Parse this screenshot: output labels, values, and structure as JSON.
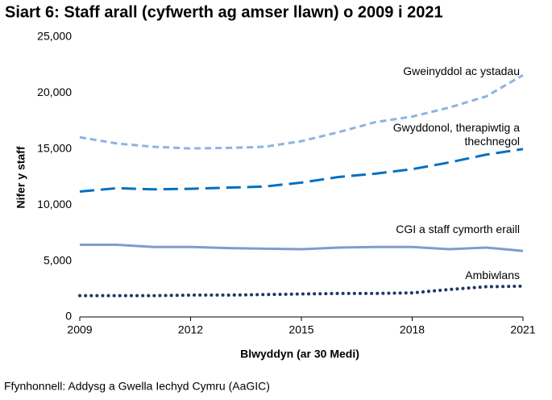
{
  "chart_data": {
    "type": "line",
    "title": "Siart 6: Staff arall (cyfwerth ag amser llawn) o 2009 i 2021",
    "x_label": "Blwyddyn (ar 30 Medi)",
    "y_label": "Nifer y staff",
    "source": "Ffynhonnell: Addysg a Gwella Iechyd Cymru (AaGIC)",
    "x": [
      2009,
      2010,
      2011,
      2012,
      2013,
      2014,
      2015,
      2016,
      2017,
      2018,
      2019,
      2020,
      2021
    ],
    "xlim": [
      2009,
      2021
    ],
    "xticks": [
      2009,
      2012,
      2015,
      2018,
      2021
    ],
    "ylim": [
      0,
      25000
    ],
    "yticks": [
      0,
      {
        "value": 5000,
        "label": "5,000"
      },
      {
        "value": 10000,
        "label": "10,000"
      },
      {
        "value": 15000,
        "label": "15,000"
      },
      {
        "value": 20000,
        "label": "20,000"
      },
      {
        "value": 25000,
        "label": "25,000"
      }
    ],
    "grid": false,
    "series": [
      {
        "name": "Gweinyddol ac ystadau",
        "color": "#8db4e2",
        "dash": "dashed",
        "values": [
          16050,
          15500,
          15200,
          15050,
          15100,
          15200,
          15700,
          16500,
          17400,
          17900,
          18700,
          19700,
          21600
        ]
      },
      {
        "name": "Gwyddonol, therapiwtig a thechnegol",
        "color": "#0070c0",
        "dash": "longdash",
        "values": [
          11200,
          11500,
          11400,
          11450,
          11550,
          11650,
          12000,
          12500,
          12800,
          13200,
          13800,
          14500,
          15000
        ]
      },
      {
        "name": "CGI a staff cymorth eraill",
        "color": "#7f9ccf",
        "dash": "solid",
        "values": [
          6450,
          6450,
          6250,
          6250,
          6150,
          6100,
          6050,
          6200,
          6250,
          6250,
          6050,
          6200,
          5900
        ]
      },
      {
        "name": "Ambiwlans",
        "color": "#1f3864",
        "dash": "dotted",
        "values": [
          1900,
          1900,
          1900,
          1950,
          1950,
          2000,
          2050,
          2100,
          2100,
          2150,
          2450,
          2700,
          2750
        ]
      }
    ]
  }
}
